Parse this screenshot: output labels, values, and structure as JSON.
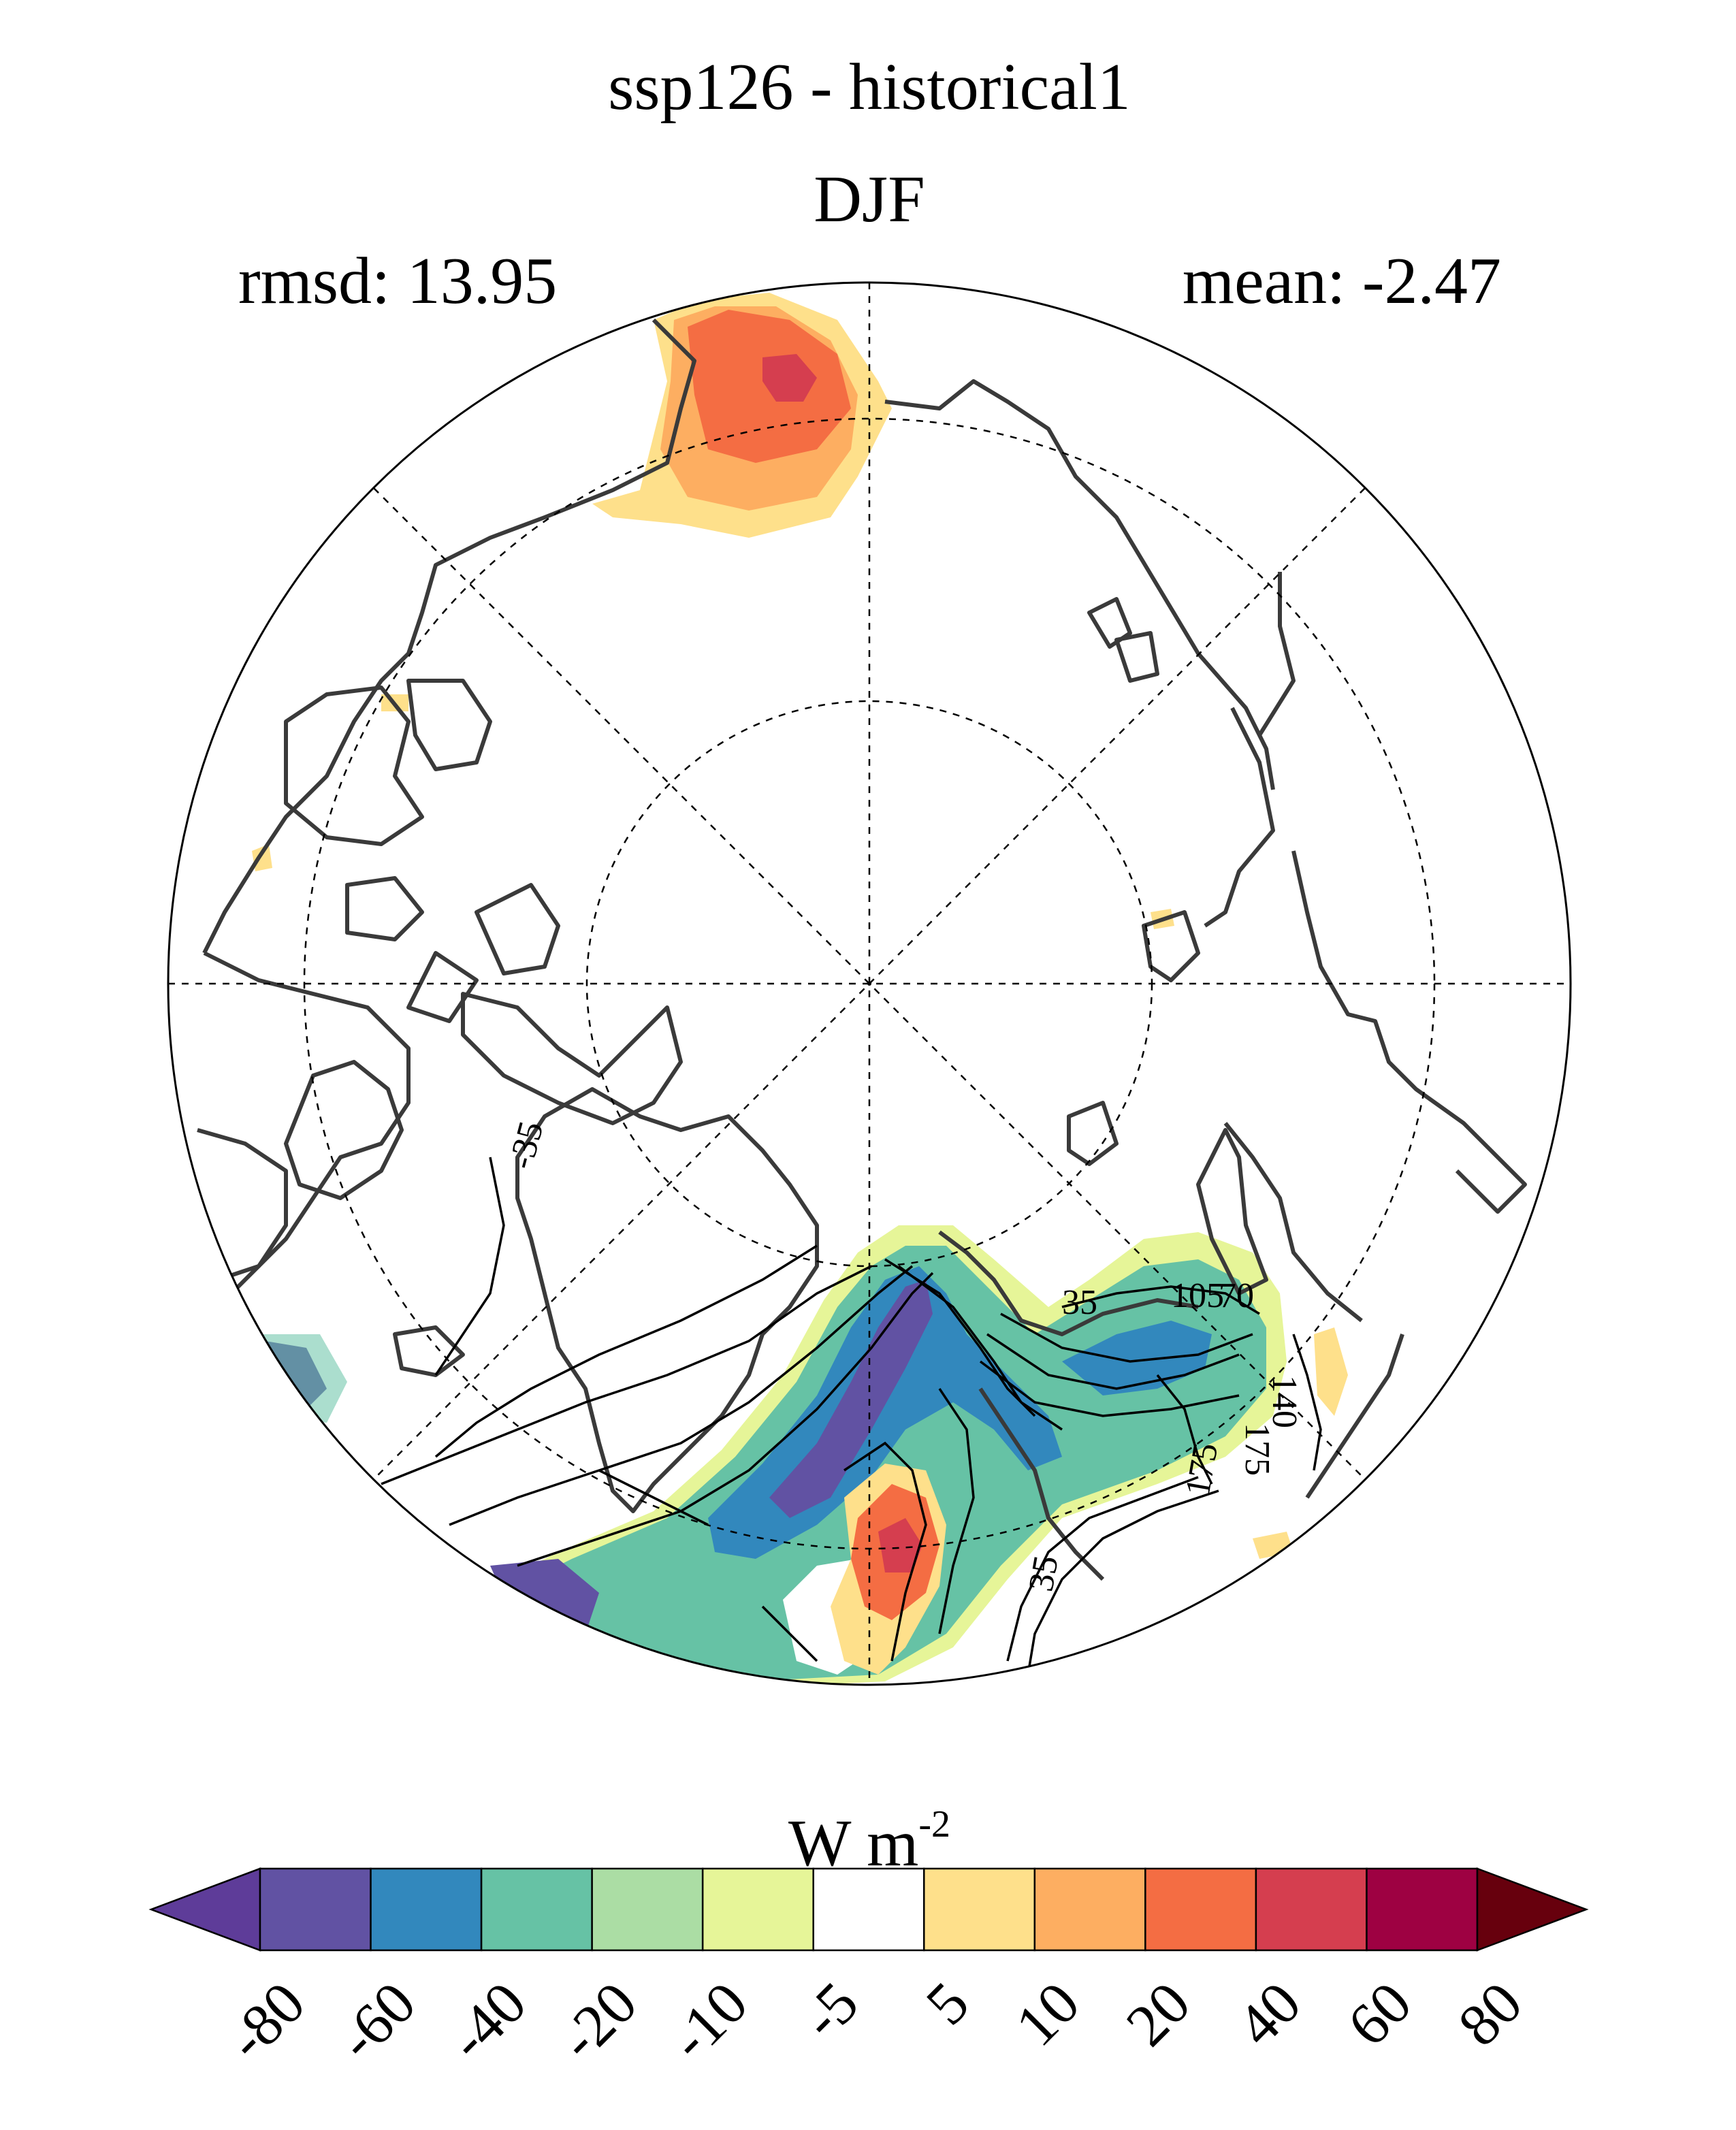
{
  "figure": {
    "title_line1": "ssp126 - historical1",
    "title_line2": "DJF",
    "rmsd_label": "rmsd: 13.95",
    "mean_label": "mean: -2.47"
  },
  "map": {
    "projection": "north polar stereographic",
    "contour_labels": [
      "-35",
      "35",
      "105",
      "70",
      "175",
      "140",
      "175",
      "35"
    ]
  },
  "colorbar": {
    "unit_base": "W m",
    "unit_exp": "-2",
    "ticks": [
      "-80",
      "-60",
      "-40",
      "-20",
      "-10",
      "-5",
      "5",
      "10",
      "20",
      "40",
      "60",
      "80"
    ],
    "colors": [
      "#5e3c99",
      "#6152a3",
      "#3288bd",
      "#66c2a5",
      "#abdda4",
      "#e6f598",
      "#ffffff",
      "#fee08b",
      "#fdae61",
      "#f46d43",
      "#d53e4f",
      "#9e0142",
      "#67000d"
    ]
  }
}
